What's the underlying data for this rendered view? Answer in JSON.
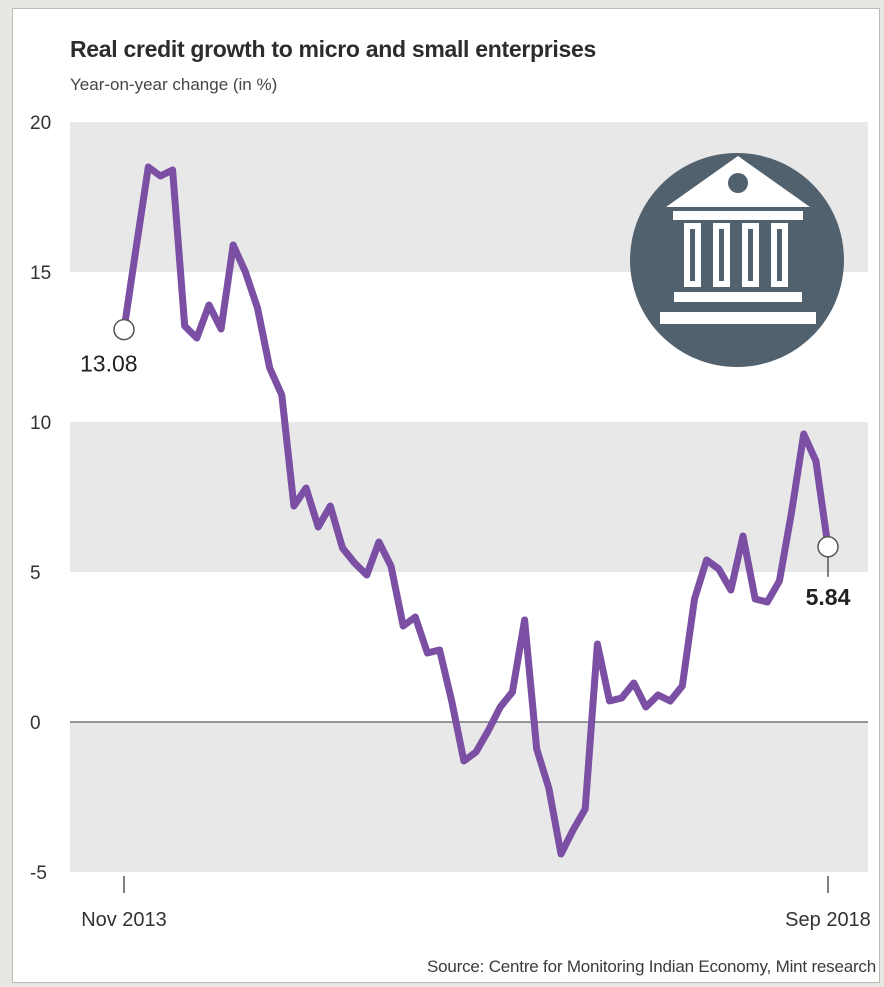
{
  "chart_data": {
    "type": "line",
    "title": "Real credit growth to micro and small enterprises",
    "subtitle": "Year-on-year change (in %)",
    "xlabel": "",
    "ylabel": "",
    "source": "Source: Centre for Monitoring Indian Economy, Mint research",
    "ylim": [
      -5,
      20
    ],
    "yticks": [
      "20",
      "15",
      "10",
      "5",
      "0",
      "-5"
    ],
    "x_tick_labels": [
      "Nov 2013",
      "Sep 2018"
    ],
    "grid": "alternating horizontal bands",
    "x": [
      "2013-11",
      "2013-12",
      "2014-01",
      "2014-02",
      "2014-03",
      "2014-04",
      "2014-05",
      "2014-06",
      "2014-07",
      "2014-08",
      "2014-09",
      "2014-10",
      "2014-11",
      "2014-12",
      "2015-01",
      "2015-02",
      "2015-03",
      "2015-04",
      "2015-05",
      "2015-06",
      "2015-07",
      "2015-08",
      "2015-09",
      "2015-10",
      "2015-11",
      "2015-12",
      "2016-01",
      "2016-02",
      "2016-03",
      "2016-04",
      "2016-05",
      "2016-06",
      "2016-07",
      "2016-08",
      "2016-09",
      "2016-10",
      "2016-11",
      "2016-12",
      "2017-01",
      "2017-02",
      "2017-03",
      "2017-04",
      "2017-05",
      "2017-06",
      "2017-07",
      "2017-08",
      "2017-09",
      "2017-10",
      "2017-11",
      "2017-12",
      "2018-01",
      "2018-02",
      "2018-03",
      "2018-04",
      "2018-05",
      "2018-06",
      "2018-07",
      "2018-08",
      "2018-09"
    ],
    "series": [
      {
        "name": "",
        "color": "#7b4fa3",
        "values": [
          13.08,
          15.8,
          18.5,
          18.2,
          18.4,
          13.2,
          12.8,
          13.9,
          13.1,
          15.9,
          15.0,
          13.8,
          11.8,
          10.9,
          7.2,
          7.8,
          6.5,
          7.2,
          5.8,
          5.3,
          4.9,
          6.0,
          5.2,
          3.2,
          3.5,
          2.3,
          2.4,
          0.7,
          -1.3,
          -1.0,
          -0.3,
          0.5,
          1.0,
          3.4,
          -0.9,
          -2.2,
          -4.4,
          -3.6,
          -2.9,
          2.6,
          0.7,
          0.8,
          1.3,
          0.5,
          0.9,
          0.7,
          1.2,
          4.1,
          5.4,
          5.1,
          4.4,
          6.2,
          4.1,
          4.0,
          4.7,
          7.0,
          9.6,
          8.7,
          5.84
        ]
      }
    ],
    "annotations": {
      "start_value": "13.08",
      "end_value": "5.84"
    },
    "colors": {
      "band": "#e8e8e8",
      "line": "#7b4fa3",
      "icon_circle": "#52616e"
    },
    "icon": "bank-icon"
  }
}
